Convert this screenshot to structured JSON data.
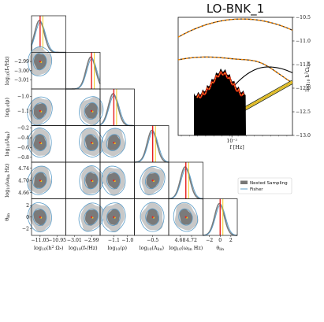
{
  "chart_data": [
    {
      "type": "line",
      "title": "LO-BNK_1",
      "xlabel": "f [Hz]",
      "ylabel": "log10 h2 Ω_GW",
      "xscale": "log",
      "xtick_labels": [
        "10^-3"
      ],
      "ylim": [
        -13.0,
        -10.5
      ],
      "ytick_values": [
        -10.5,
        -11.0,
        -11.5,
        -12.0,
        -12.5,
        -13.0
      ],
      "ytick_labels": [
        "−10.5",
        "−11.0",
        "−11.5",
        "−12.0",
        "−12.5",
        "−13.0"
      ],
      "colors": {
        "signal": "#000000",
        "orange": "#ff8c00",
        "red": "#cc1010",
        "yellow": "#d9c83a"
      }
    },
    {
      "type": "scatter",
      "subtype": "corner",
      "legend": [
        {
          "name": "Nested Sampling",
          "color": "#777777"
        },
        {
          "name": "Fisher",
          "color": "#5a9cc8"
        }
      ],
      "legend_position": "right, middle",
      "parameters": [
        {
          "label": "log10(h2 Ω_*)",
          "truth": -11.05,
          "range": [
            -11.1,
            -10.9
          ],
          "ticks": [
            "−11.05",
            "−10.95"
          ]
        },
        {
          "label": "log10(f_*/Hz)",
          "truth": -2.99,
          "range": [
            -3.02,
            -2.98
          ],
          "ticks": [
            "−3.01",
            "−2.99"
          ],
          "yticks": [
            "−2.99",
            "−3.00",
            "−3.01"
          ]
        },
        {
          "label": "log10(ρ)",
          "truth": -1.1,
          "range": [
            -1.2,
            -0.95
          ],
          "ticks": [
            "−1.1",
            "−1.0"
          ],
          "yticks": [
            "−1.0",
            "−1.1"
          ]
        },
        {
          "label": "log10(A_lin)",
          "truth": -0.5,
          "range": [
            -0.9,
            -0.15
          ],
          "ticks": [
            "−0.5"
          ],
          "yticks": [
            "−0.2",
            "−0.4",
            "−0.6",
            "−0.8"
          ]
        },
        {
          "label": "log10(ω_lin Hz)",
          "truth": 4.7,
          "range": [
            4.64,
            4.76
          ],
          "ticks": [
            "4.68",
            "4.72"
          ],
          "yticks": [
            "4.74",
            "4.70",
            "4.66"
          ]
        },
        {
          "label": "θ_lin",
          "truth": 0.0,
          "range": [
            -3.2,
            3.2
          ],
          "ticks": [
            "−2",
            "0",
            "2"
          ],
          "yticks": [
            "2",
            "0",
            "−2"
          ]
        }
      ],
      "truth_color": "#e61e1e",
      "fisher_center_color": "#f2cc1d"
    }
  ]
}
